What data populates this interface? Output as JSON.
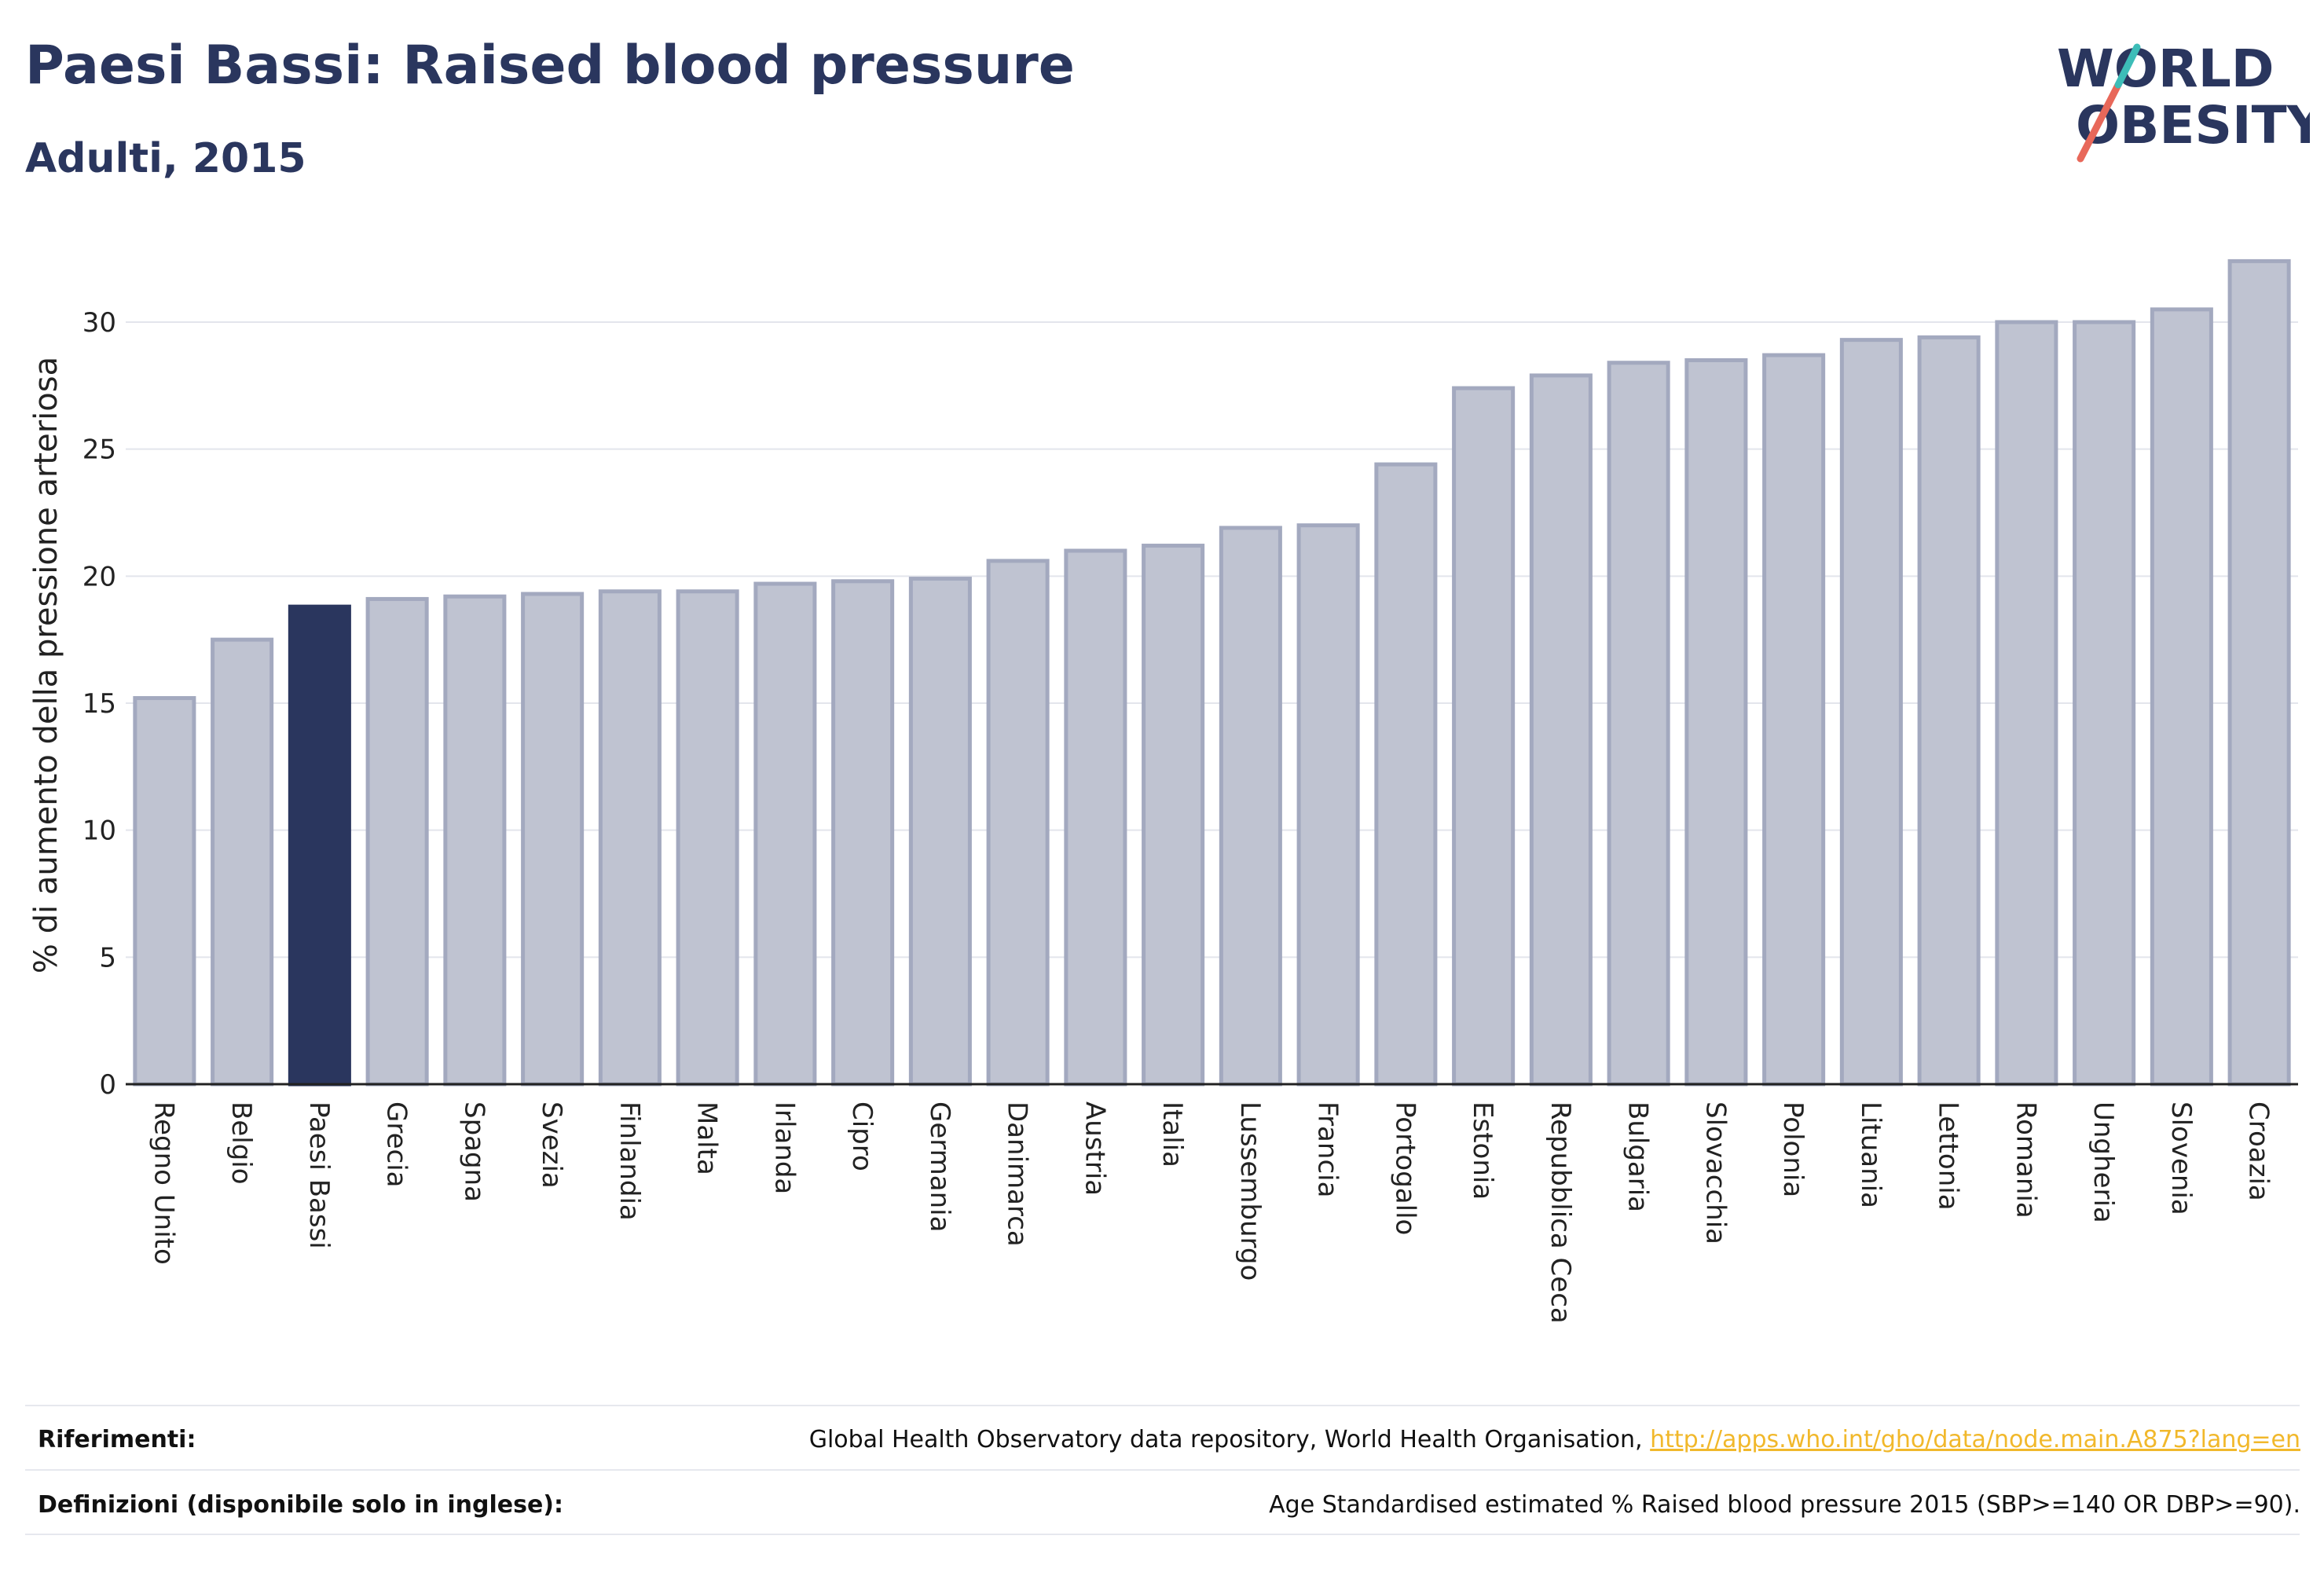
{
  "header": {
    "title": "Paesi Bassi: Raised blood pressure",
    "subtitle": "Adulti, 2015"
  },
  "logo": {
    "line1": "WORLD",
    "line2": "OBESITY",
    "brand_color": "#2a365e",
    "accent_teal": "#3dbdb8",
    "accent_coral": "#e8685a"
  },
  "colors": {
    "highlight_bar": "#2a365e",
    "default_bar": "#bfc3d1",
    "default_bar_stroke": "#a3a9bf",
    "grid": "#e3e5ec",
    "axis": "#222222"
  },
  "chart_data": {
    "type": "bar",
    "title": "Paesi Bassi: Raised blood pressure",
    "subtitle": "Adulti, 2015",
    "xlabel": "",
    "ylabel": "% di aumento della pressione arteriosa",
    "ylim": [
      0,
      33
    ],
    "yticks": [
      0,
      5,
      10,
      15,
      20,
      25,
      30
    ],
    "grid": true,
    "highlight": "Paesi Bassi",
    "categories": [
      "Regno Unito",
      "Belgio",
      "Paesi Bassi",
      "Grecia",
      "Spagna",
      "Svezia",
      "Finlandia",
      "Malta",
      "Irlanda",
      "Cipro",
      "Germania",
      "Danimarca",
      "Austria",
      "Italia",
      "Lussemburgo",
      "Francia",
      "Portogallo",
      "Estonia",
      "Repubblica Ceca",
      "Bulgaria",
      "Slovacchia",
      "Polonia",
      "Lituania",
      "Lettonia",
      "Romania",
      "Ungheria",
      "Slovenia",
      "Croazia"
    ],
    "values": [
      15.2,
      17.5,
      18.8,
      19.1,
      19.2,
      19.3,
      19.4,
      19.4,
      19.7,
      19.8,
      19.9,
      20.6,
      21.0,
      21.2,
      21.9,
      22.0,
      24.4,
      27.4,
      27.9,
      28.4,
      28.5,
      28.7,
      29.3,
      29.4,
      30.0,
      30.0,
      30.5,
      32.4
    ]
  },
  "footer": {
    "references_label": "Riferimenti:",
    "references_text": "Global Health Observatory data repository, World Health Organisation,",
    "references_link": "http://apps.who.int/gho/data/node.main.A875?lang=en",
    "definitions_label": "Definizioni (disponibile solo in inglese):",
    "definitions_text": "Age Standardised estimated % Raised blood pressure 2015 (SBP>=140 OR DBP>=90)."
  }
}
